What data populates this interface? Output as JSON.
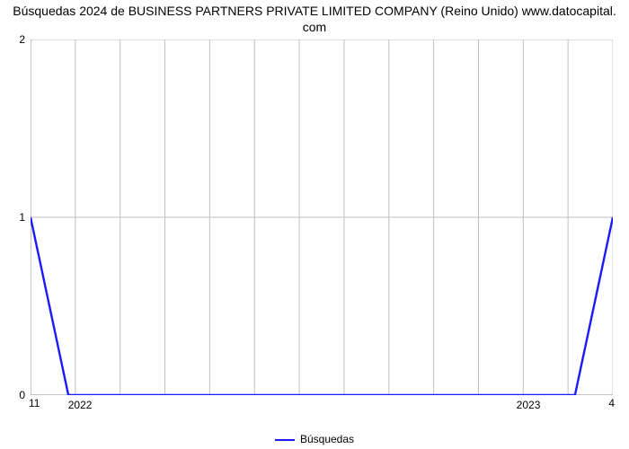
{
  "chart": {
    "type": "line",
    "title_line1": "Búsquedas 2024 de BUSINESS PARTNERS PRIVATE LIMITED COMPANY (Reino Unido) www.datocapital.",
    "title_line2": "com",
    "title_fontsize": 14,
    "title_color": "#000000",
    "background_color": "#ffffff",
    "grid_color": "#c0c0c0",
    "axis_color": "#888888",
    "label_fontsize": 12,
    "x_categories": [
      "2022",
      "2023"
    ],
    "x_minor_ticks_per_gap": 11,
    "x_left_end_label": "11",
    "x_right_end_label": "4",
    "y_ticks": [
      0,
      1,
      2
    ],
    "ylim": [
      0,
      2
    ],
    "n_x_gridlines": 14,
    "series": {
      "label": "Búsquedas",
      "color": "#1a1aff",
      "line_width": 2.4,
      "segments": [
        {
          "from_u": 0.0,
          "from_v": 1.0,
          "to_u": 0.065,
          "to_v": 0.0
        },
        {
          "from_u": 0.065,
          "from_v": 0.0,
          "to_u": 0.935,
          "to_v": 0.0
        },
        {
          "from_u": 0.935,
          "from_v": 0.0,
          "to_u": 1.0,
          "to_v": 1.0
        }
      ]
    },
    "legend_label": "Búsquedas"
  }
}
